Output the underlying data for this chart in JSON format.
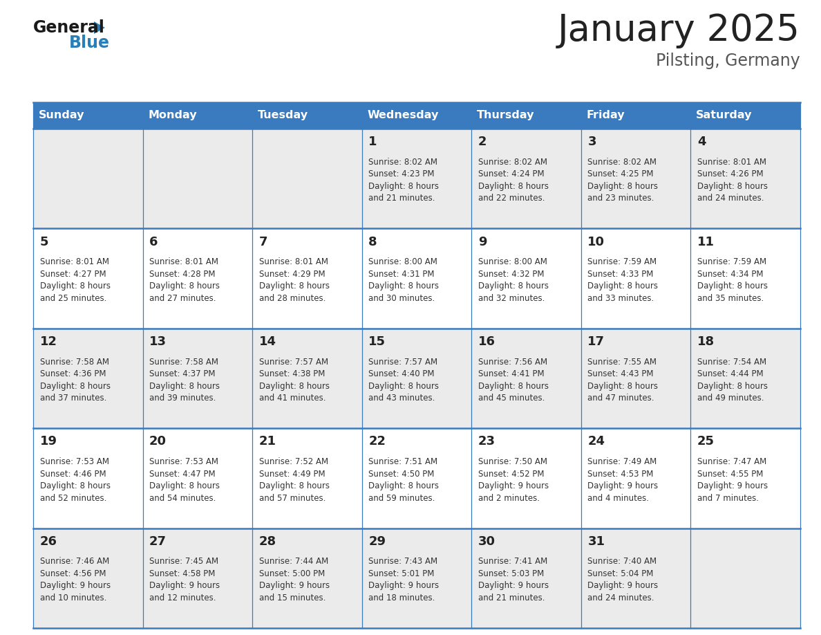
{
  "title": "January 2025",
  "subtitle": "Pilsting, Germany",
  "header_bg": "#3a7abf",
  "header_text_color": "#ffffff",
  "days_of_week": [
    "Sunday",
    "Monday",
    "Tuesday",
    "Wednesday",
    "Thursday",
    "Friday",
    "Saturday"
  ],
  "row_bg_even": "#ebebeb",
  "row_bg_odd": "#ffffff",
  "cell_border_color": "#3a7abf",
  "title_color": "#222222",
  "subtitle_color": "#555555",
  "day_number_color": "#222222",
  "info_text_color": "#333333",
  "logo_general_color": "#1a1a1a",
  "logo_blue_color": "#2980b9",
  "logo_triangle_color": "#2980b9",
  "calendar_data": [
    [
      "",
      "",
      "",
      "1\nSunrise: 8:02 AM\nSunset: 4:23 PM\nDaylight: 8 hours\nand 21 minutes.",
      "2\nSunrise: 8:02 AM\nSunset: 4:24 PM\nDaylight: 8 hours\nand 22 minutes.",
      "3\nSunrise: 8:02 AM\nSunset: 4:25 PM\nDaylight: 8 hours\nand 23 minutes.",
      "4\nSunrise: 8:01 AM\nSunset: 4:26 PM\nDaylight: 8 hours\nand 24 minutes."
    ],
    [
      "5\nSunrise: 8:01 AM\nSunset: 4:27 PM\nDaylight: 8 hours\nand 25 minutes.",
      "6\nSunrise: 8:01 AM\nSunset: 4:28 PM\nDaylight: 8 hours\nand 27 minutes.",
      "7\nSunrise: 8:01 AM\nSunset: 4:29 PM\nDaylight: 8 hours\nand 28 minutes.",
      "8\nSunrise: 8:00 AM\nSunset: 4:31 PM\nDaylight: 8 hours\nand 30 minutes.",
      "9\nSunrise: 8:00 AM\nSunset: 4:32 PM\nDaylight: 8 hours\nand 32 minutes.",
      "10\nSunrise: 7:59 AM\nSunset: 4:33 PM\nDaylight: 8 hours\nand 33 minutes.",
      "11\nSunrise: 7:59 AM\nSunset: 4:34 PM\nDaylight: 8 hours\nand 35 minutes."
    ],
    [
      "12\nSunrise: 7:58 AM\nSunset: 4:36 PM\nDaylight: 8 hours\nand 37 minutes.",
      "13\nSunrise: 7:58 AM\nSunset: 4:37 PM\nDaylight: 8 hours\nand 39 minutes.",
      "14\nSunrise: 7:57 AM\nSunset: 4:38 PM\nDaylight: 8 hours\nand 41 minutes.",
      "15\nSunrise: 7:57 AM\nSunset: 4:40 PM\nDaylight: 8 hours\nand 43 minutes.",
      "16\nSunrise: 7:56 AM\nSunset: 4:41 PM\nDaylight: 8 hours\nand 45 minutes.",
      "17\nSunrise: 7:55 AM\nSunset: 4:43 PM\nDaylight: 8 hours\nand 47 minutes.",
      "18\nSunrise: 7:54 AM\nSunset: 4:44 PM\nDaylight: 8 hours\nand 49 minutes."
    ],
    [
      "19\nSunrise: 7:53 AM\nSunset: 4:46 PM\nDaylight: 8 hours\nand 52 minutes.",
      "20\nSunrise: 7:53 AM\nSunset: 4:47 PM\nDaylight: 8 hours\nand 54 minutes.",
      "21\nSunrise: 7:52 AM\nSunset: 4:49 PM\nDaylight: 8 hours\nand 57 minutes.",
      "22\nSunrise: 7:51 AM\nSunset: 4:50 PM\nDaylight: 8 hours\nand 59 minutes.",
      "23\nSunrise: 7:50 AM\nSunset: 4:52 PM\nDaylight: 9 hours\nand 2 minutes.",
      "24\nSunrise: 7:49 AM\nSunset: 4:53 PM\nDaylight: 9 hours\nand 4 minutes.",
      "25\nSunrise: 7:47 AM\nSunset: 4:55 PM\nDaylight: 9 hours\nand 7 minutes."
    ],
    [
      "26\nSunrise: 7:46 AM\nSunset: 4:56 PM\nDaylight: 9 hours\nand 10 minutes.",
      "27\nSunrise: 7:45 AM\nSunset: 4:58 PM\nDaylight: 9 hours\nand 12 minutes.",
      "28\nSunrise: 7:44 AM\nSunset: 5:00 PM\nDaylight: 9 hours\nand 15 minutes.",
      "29\nSunrise: 7:43 AM\nSunset: 5:01 PM\nDaylight: 9 hours\nand 18 minutes.",
      "30\nSunrise: 7:41 AM\nSunset: 5:03 PM\nDaylight: 9 hours\nand 21 minutes.",
      "31\nSunrise: 7:40 AM\nSunset: 5:04 PM\nDaylight: 9 hours\nand 24 minutes.",
      ""
    ]
  ]
}
